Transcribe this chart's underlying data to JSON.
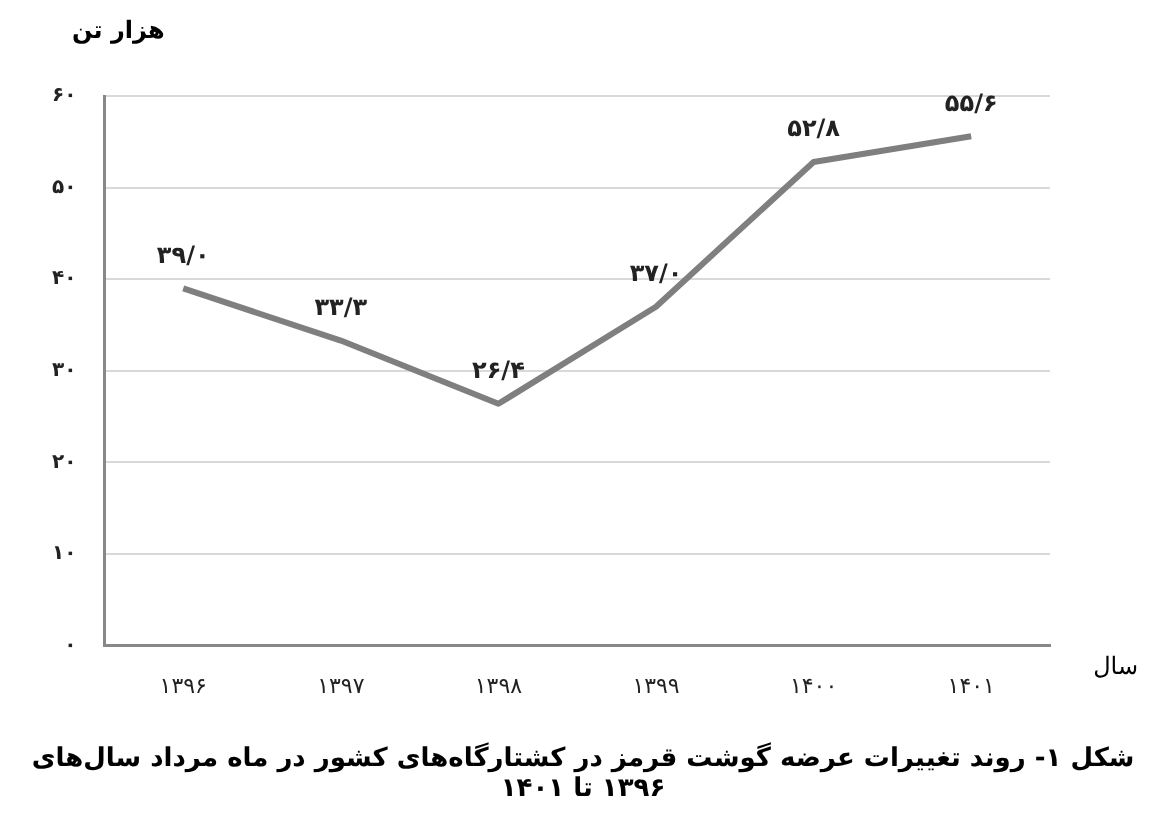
{
  "chart_data": {
    "type": "line",
    "title": "شکل ۱- روند تغییرات عرضه گوشت قرمز در کشتارگاه‌های کشور در ماه مرداد  سال‌های ۱۳۹۶ تا ۱۴۰۱",
    "ylabel": "هزار تن",
    "xlabel": "سال",
    "categories": [
      "۱۳۹۶",
      "۱۳۹۷",
      "۱۳۹۸",
      "۱۳۹۹",
      "۱۴۰۰",
      "۱۴۰۱"
    ],
    "series": [
      {
        "color": "#7f7f7f",
        "values": [
          39.0,
          33.3,
          26.4,
          37.0,
          52.8,
          55.6
        ],
        "value_labels": [
          "۳۹/۰",
          "۳۳/۳",
          "۲۶/۴",
          "۳۷/۰",
          "۵۲/۸",
          "۵۵/۶"
        ]
      }
    ],
    "ylim": [
      0,
      60
    ],
    "yticks": [
      {
        "value": 0,
        "label": "۰"
      },
      {
        "value": 10,
        "label": "۱۰"
      },
      {
        "value": 20,
        "label": "۲۰"
      },
      {
        "value": 30,
        "label": "۳۰"
      },
      {
        "value": 40,
        "label": "۴۰"
      },
      {
        "value": 50,
        "label": "۵۰"
      },
      {
        "value": 60,
        "label": "۶۰"
      }
    ],
    "grid": "y",
    "legend": false,
    "marker": "none",
    "line_style": "solid"
  }
}
